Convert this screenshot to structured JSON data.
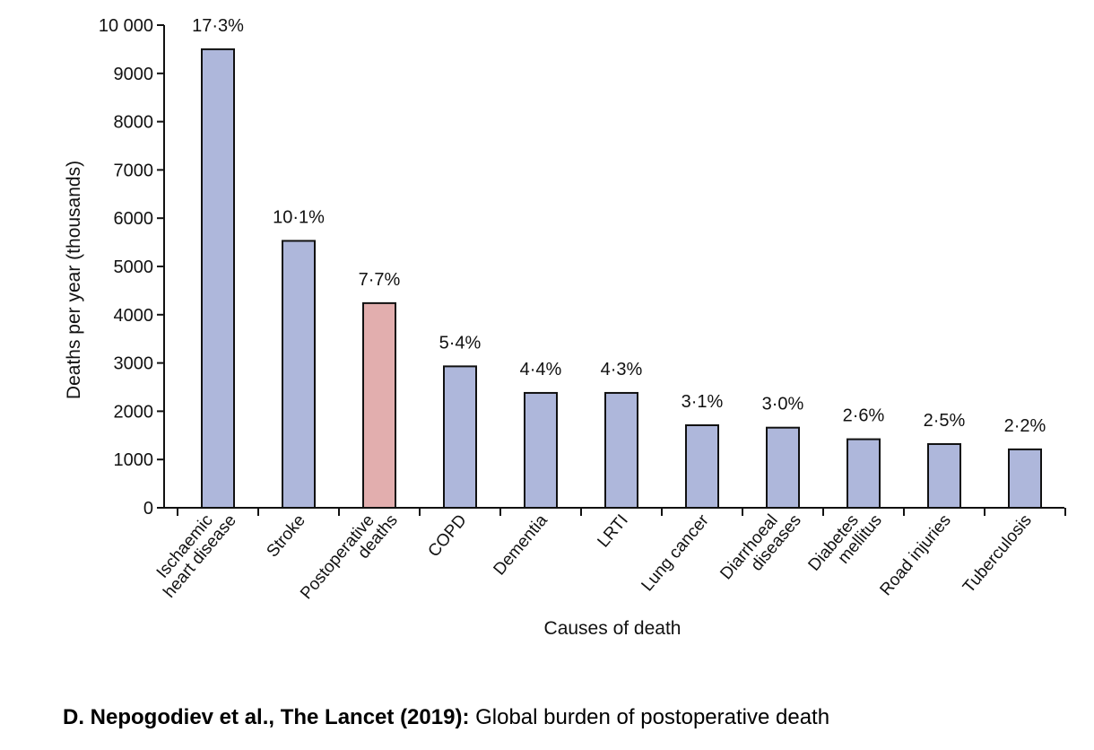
{
  "chart_data": {
    "type": "bar",
    "categories": [
      [
        "Ischaemic",
        "heart disease"
      ],
      [
        "Stroke"
      ],
      [
        "Postoperative",
        "deaths"
      ],
      [
        "COPD"
      ],
      [
        "Dementia"
      ],
      [
        "LRTI"
      ],
      [
        "Lung cancer"
      ],
      [
        "Diarrhoeal",
        "diseases"
      ],
      [
        "Diabetes",
        "mellitus"
      ],
      [
        "Road injuries"
      ],
      [
        "Tuberculosis"
      ]
    ],
    "values": [
      9500,
      5530,
      4240,
      2930,
      2380,
      2380,
      1710,
      1660,
      1420,
      1320,
      1210
    ],
    "data_labels": [
      "17·3%",
      "10·1%",
      "7·7%",
      "5·4%",
      "4·4%",
      "4·3%",
      "3·1%",
      "3·0%",
      "2·6%",
      "2·5%",
      "2·2%"
    ],
    "highlight_index": 2,
    "colors": {
      "bar": "#aeb7db",
      "highlight": "#e2aeae",
      "stroke": "#111111"
    },
    "xlabel": "Causes of death",
    "ylabel": "Deaths per year (thousands)",
    "ylim": [
      0,
      10000
    ],
    "yticks": [
      0,
      1000,
      2000,
      3000,
      4000,
      5000,
      6000,
      7000,
      8000,
      9000,
      10000
    ],
    "ytick_labels": [
      "0",
      "1000",
      "2000",
      "3000",
      "4000",
      "5000",
      "6000",
      "7000",
      "8000",
      "9000",
      "10 000"
    ],
    "grid": false,
    "legend": "none"
  },
  "caption": {
    "bold": "D. Nepogodiev et al., The Lancet (2019):",
    "text": " Global burden of postoperative death"
  }
}
